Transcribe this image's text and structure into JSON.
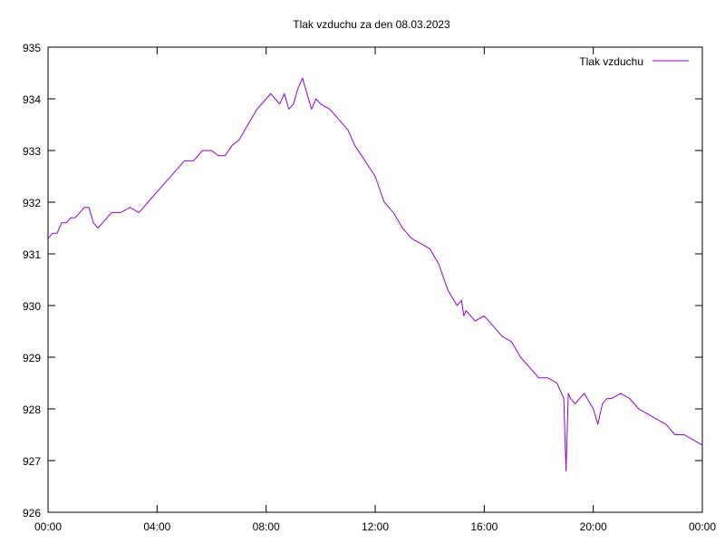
{
  "chart_data": {
    "type": "line",
    "title": "Tlak vzduchu za den 08.03.2023",
    "xlabel": "",
    "ylabel": "",
    "x_ticks": [
      "00:00",
      "04:00",
      "08:00",
      "12:00",
      "16:00",
      "20:00",
      "00:00"
    ],
    "y_ticks": [
      "926",
      "927",
      "928",
      "929",
      "930",
      "931",
      "932",
      "933",
      "934",
      "935"
    ],
    "xlim": [
      "00:00",
      "24:00"
    ],
    "ylim": [
      926,
      935
    ],
    "grid": false,
    "legend_position": "top-right",
    "series": [
      {
        "name": "Tlak vzduchu",
        "color": "#9400d3",
        "x": [
          "00:00",
          "00:10",
          "00:20",
          "00:30",
          "00:40",
          "00:50",
          "01:00",
          "01:10",
          "01:20",
          "01:30",
          "01:40",
          "01:50",
          "02:00",
          "02:20",
          "02:40",
          "03:00",
          "03:20",
          "03:30",
          "03:40",
          "04:00",
          "04:20",
          "04:40",
          "05:00",
          "05:20",
          "05:40",
          "06:00",
          "06:15",
          "06:30",
          "06:45",
          "07:00",
          "07:20",
          "07:40",
          "08:00",
          "08:10",
          "08:20",
          "08:30",
          "08:40",
          "08:50",
          "09:00",
          "09:10",
          "09:20",
          "09:30",
          "09:40",
          "09:50",
          "10:00",
          "10:20",
          "10:40",
          "11:00",
          "11:15",
          "11:30",
          "11:45",
          "12:00",
          "12:20",
          "12:40",
          "13:00",
          "13:20",
          "13:40",
          "14:00",
          "14:20",
          "14:40",
          "15:00",
          "15:10",
          "15:15",
          "15:20",
          "15:40",
          "16:00",
          "16:20",
          "16:40",
          "17:00",
          "17:20",
          "17:40",
          "18:00",
          "18:20",
          "18:40",
          "18:55",
          "19:00",
          "19:05",
          "19:10",
          "19:20",
          "19:40",
          "20:00",
          "20:10",
          "20:20",
          "20:30",
          "20:40",
          "21:00",
          "21:20",
          "21:40",
          "22:00",
          "22:20",
          "22:40",
          "23:00",
          "23:20",
          "23:40",
          "24:00"
        ],
        "y": [
          931.3,
          931.4,
          931.4,
          931.6,
          931.6,
          931.7,
          931.7,
          931.8,
          931.9,
          931.9,
          931.6,
          931.5,
          931.6,
          931.8,
          931.8,
          931.9,
          931.8,
          931.9,
          932.0,
          932.2,
          932.4,
          932.6,
          932.8,
          932.8,
          933.0,
          933.0,
          932.9,
          932.9,
          933.1,
          933.2,
          933.5,
          933.8,
          934.0,
          934.1,
          934.0,
          933.9,
          934.1,
          933.8,
          933.9,
          934.2,
          934.4,
          934.1,
          933.8,
          934.0,
          933.9,
          933.8,
          933.6,
          933.4,
          933.1,
          932.9,
          932.7,
          932.5,
          932.0,
          931.8,
          931.5,
          931.3,
          931.2,
          931.1,
          930.8,
          930.3,
          930.0,
          930.1,
          929.8,
          929.9,
          929.7,
          929.8,
          929.6,
          929.4,
          929.3,
          929.0,
          928.8,
          928.6,
          928.6,
          928.5,
          928.2,
          926.8,
          928.3,
          928.2,
          928.1,
          928.3,
          928.0,
          927.7,
          928.1,
          928.2,
          928.2,
          928.3,
          928.2,
          928.0,
          927.9,
          927.8,
          927.7,
          927.5,
          927.5,
          927.4,
          927.3
        ]
      }
    ]
  }
}
